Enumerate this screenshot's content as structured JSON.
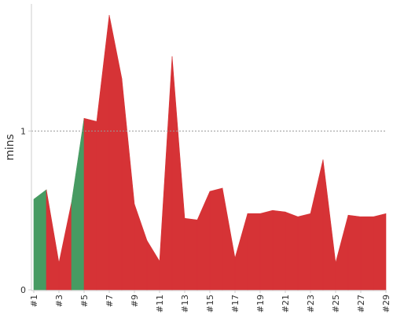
{
  "chart_data": {
    "type": "area",
    "ylabel": "mins",
    "y_ticks": [
      0,
      1
    ],
    "ylim": [
      0,
      1.8
    ],
    "reference_line": {
      "value": 1,
      "style": "dotted"
    },
    "x": [
      "#1",
      "#2",
      "#3",
      "#4",
      "#5",
      "#6",
      "#7",
      "#8",
      "#9",
      "#10",
      "#11",
      "#12",
      "#13",
      "#14",
      "#15",
      "#16",
      "#17",
      "#18",
      "#19",
      "#20",
      "#21",
      "#22",
      "#23",
      "#24",
      "#25",
      "#26",
      "#27",
      "#28",
      "#29"
    ],
    "x_tick_labels": [
      "#1",
      "#3",
      "#5",
      "#7",
      "#9",
      "#11",
      "#13",
      "#15",
      "#17",
      "#19",
      "#21",
      "#23",
      "#25",
      "#27",
      "#29"
    ],
    "values": [
      0.57,
      0.63,
      0.17,
      0.55,
      1.08,
      1.06,
      1.73,
      1.33,
      0.54,
      0.31,
      0.18,
      1.47,
      0.45,
      0.44,
      0.62,
      0.64,
      0.2,
      0.48,
      0.48,
      0.5,
      0.49,
      0.46,
      0.48,
      0.82,
      0.17,
      0.47,
      0.46,
      0.46,
      0.48
    ],
    "status": [
      "success",
      "failure",
      "failure",
      "success",
      "failure",
      "failure",
      "failure",
      "failure",
      "failure",
      "failure",
      "failure",
      "failure",
      "failure",
      "failure",
      "failure",
      "failure",
      "failure",
      "failure",
      "failure",
      "failure",
      "failure",
      "failure",
      "failure",
      "failure",
      "failure",
      "failure",
      "failure",
      "failure",
      "failure"
    ],
    "colors": {
      "success": "#479b62",
      "failure": "#d63336",
      "axis": "#cccccc",
      "grid": "#999999"
    },
    "grid": false,
    "legend": "none"
  }
}
